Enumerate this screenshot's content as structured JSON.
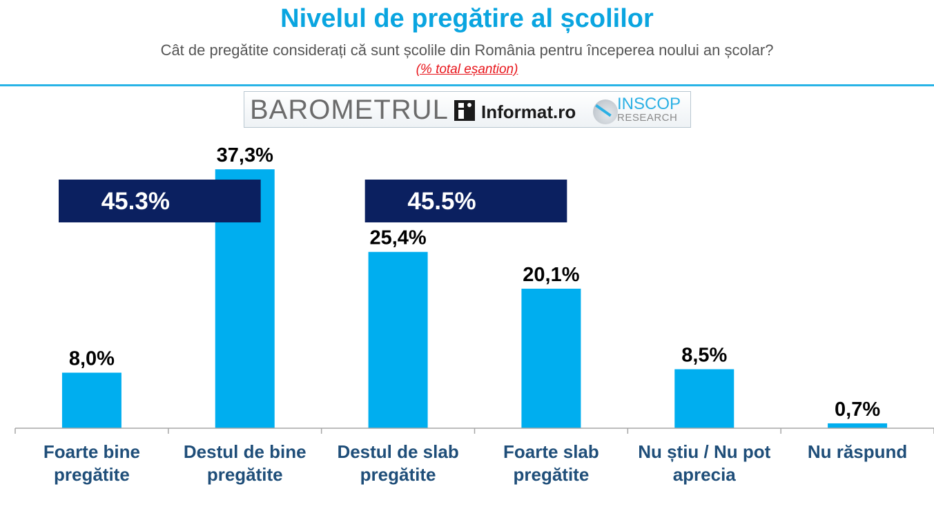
{
  "header": {
    "title": "Nivelul de pregătire al școlilor",
    "subtitle": "Cât de pregătite considerați că sunt școlile din România pentru începerea noului an școlar?",
    "note": "(% total eșantion)"
  },
  "logo": {
    "barometrul": "BAROMETRUL",
    "informat": "Informat.ro",
    "inscop": "INSCOP",
    "research": "RESEARCH"
  },
  "colors": {
    "title": "#0aa5e0",
    "bar": "#00aeef",
    "bracket": "#0b2060",
    "category_text": "#1f4e79",
    "note": "#e8141a"
  },
  "chart_data": {
    "type": "bar",
    "categories": [
      [
        "Foarte bine",
        "pregătite"
      ],
      [
        "Destul de bine",
        "pregătite"
      ],
      [
        "Destul de slab",
        "pregătite"
      ],
      [
        "Foarte slab",
        "pregătite"
      ],
      [
        "Nu știu / Nu pot",
        "aprecia"
      ],
      [
        "Nu răspund"
      ]
    ],
    "values": [
      8.0,
      37.3,
      25.4,
      20.1,
      8.5,
      0.7
    ],
    "data_labels": [
      "8,0%",
      "37,3%",
      "25,4%",
      "20,1%",
      "8,5%",
      "0,7%"
    ],
    "ylim": [
      0,
      40
    ],
    "grid": false,
    "legend": "none",
    "group_totals": [
      {
        "label": "45.3%",
        "categories": [
          0,
          1
        ]
      },
      {
        "label": "45.5%",
        "categories": [
          2,
          3
        ]
      }
    ]
  }
}
